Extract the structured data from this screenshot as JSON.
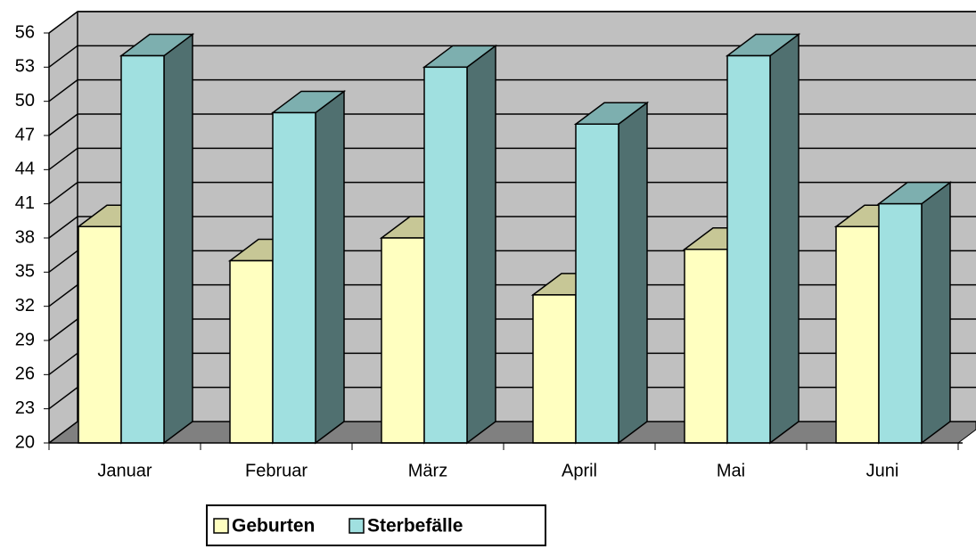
{
  "chart_data": {
    "type": "bar3d",
    "categories": [
      "Januar",
      "Februar",
      "März",
      "April",
      "Mai",
      "Juni"
    ],
    "series": [
      {
        "name": "Geburten",
        "color": "#ffffc0",
        "values": [
          39,
          36,
          38,
          33,
          37,
          39
        ]
      },
      {
        "name": "Sterbefälle",
        "color": "#a0e0e0",
        "values": [
          54,
          49,
          53,
          48,
          54,
          41
        ]
      }
    ],
    "ylim": [
      20,
      56
    ],
    "yticks": [
      20,
      23,
      26,
      29,
      32,
      35,
      38,
      41,
      44,
      47,
      50,
      53,
      56
    ],
    "grid": true,
    "legend": "bottom"
  }
}
